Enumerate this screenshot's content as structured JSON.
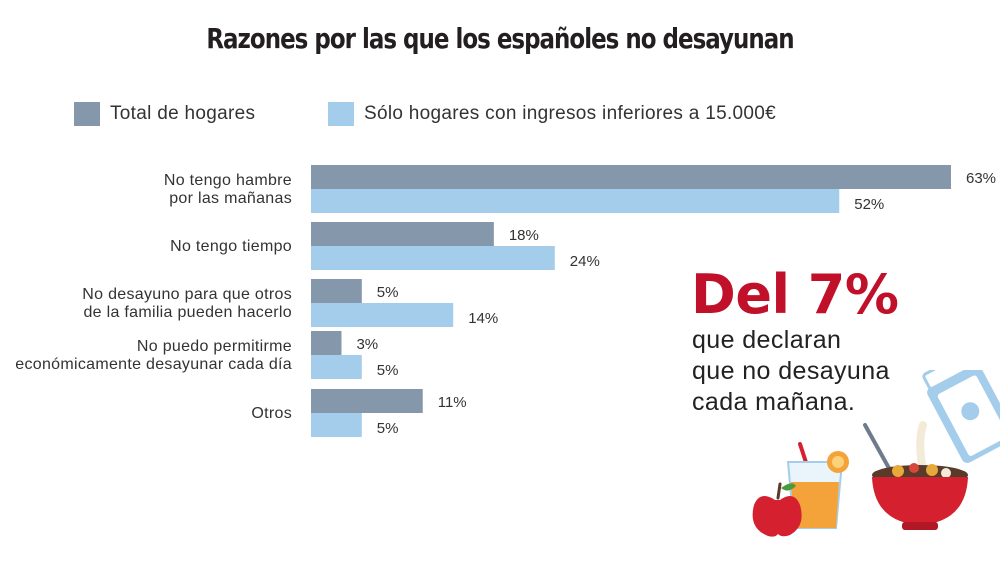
{
  "title": "Razones por las que los españoles no desayunan",
  "legend": [
    {
      "label": "Total de hogares",
      "color": "#8497ab"
    },
    {
      "label": "Sólo hogares con ingresos inferiores a 15.000€",
      "color": "#a4cdeb"
    }
  ],
  "callout": {
    "big": "Del 7%",
    "lines": [
      "que declaran",
      "que no desayuna",
      "cada mañana."
    ],
    "color": "#c0102a"
  },
  "illustration": {
    "icons": [
      "apple-icon",
      "juice-glass-icon",
      "cereal-bowl-icon",
      "milk-carton-icon"
    ]
  },
  "chart_data": {
    "type": "bar",
    "orientation": "horizontal",
    "title": "Razones por las que los españoles no desayunan",
    "categories": [
      [
        "No tengo hambre",
        "por las mañanas"
      ],
      [
        "No tengo tiempo"
      ],
      [
        "No desayuno para que otros",
        "de la familia pueden hacerlo"
      ],
      [
        "No puedo permitirme",
        "económicamente desayunar cada día"
      ],
      [
        "Otros"
      ]
    ],
    "series": [
      {
        "name": "Total de hogares",
        "color": "#8497ab",
        "values": [
          63,
          18,
          5,
          3,
          11
        ],
        "labels": [
          "63%",
          "18%",
          "5%",
          "3%",
          "11%"
        ]
      },
      {
        "name": "Sólo hogares con ingresos inferiores a 15.000€",
        "color": "#a4cdeb",
        "values": [
          52,
          24,
          14,
          5,
          5
        ],
        "labels": [
          "52%",
          "24%",
          "14%",
          "5%",
          "5%"
        ]
      }
    ],
    "xlim": [
      0,
      63
    ],
    "grid": false,
    "legend_position": "top"
  }
}
